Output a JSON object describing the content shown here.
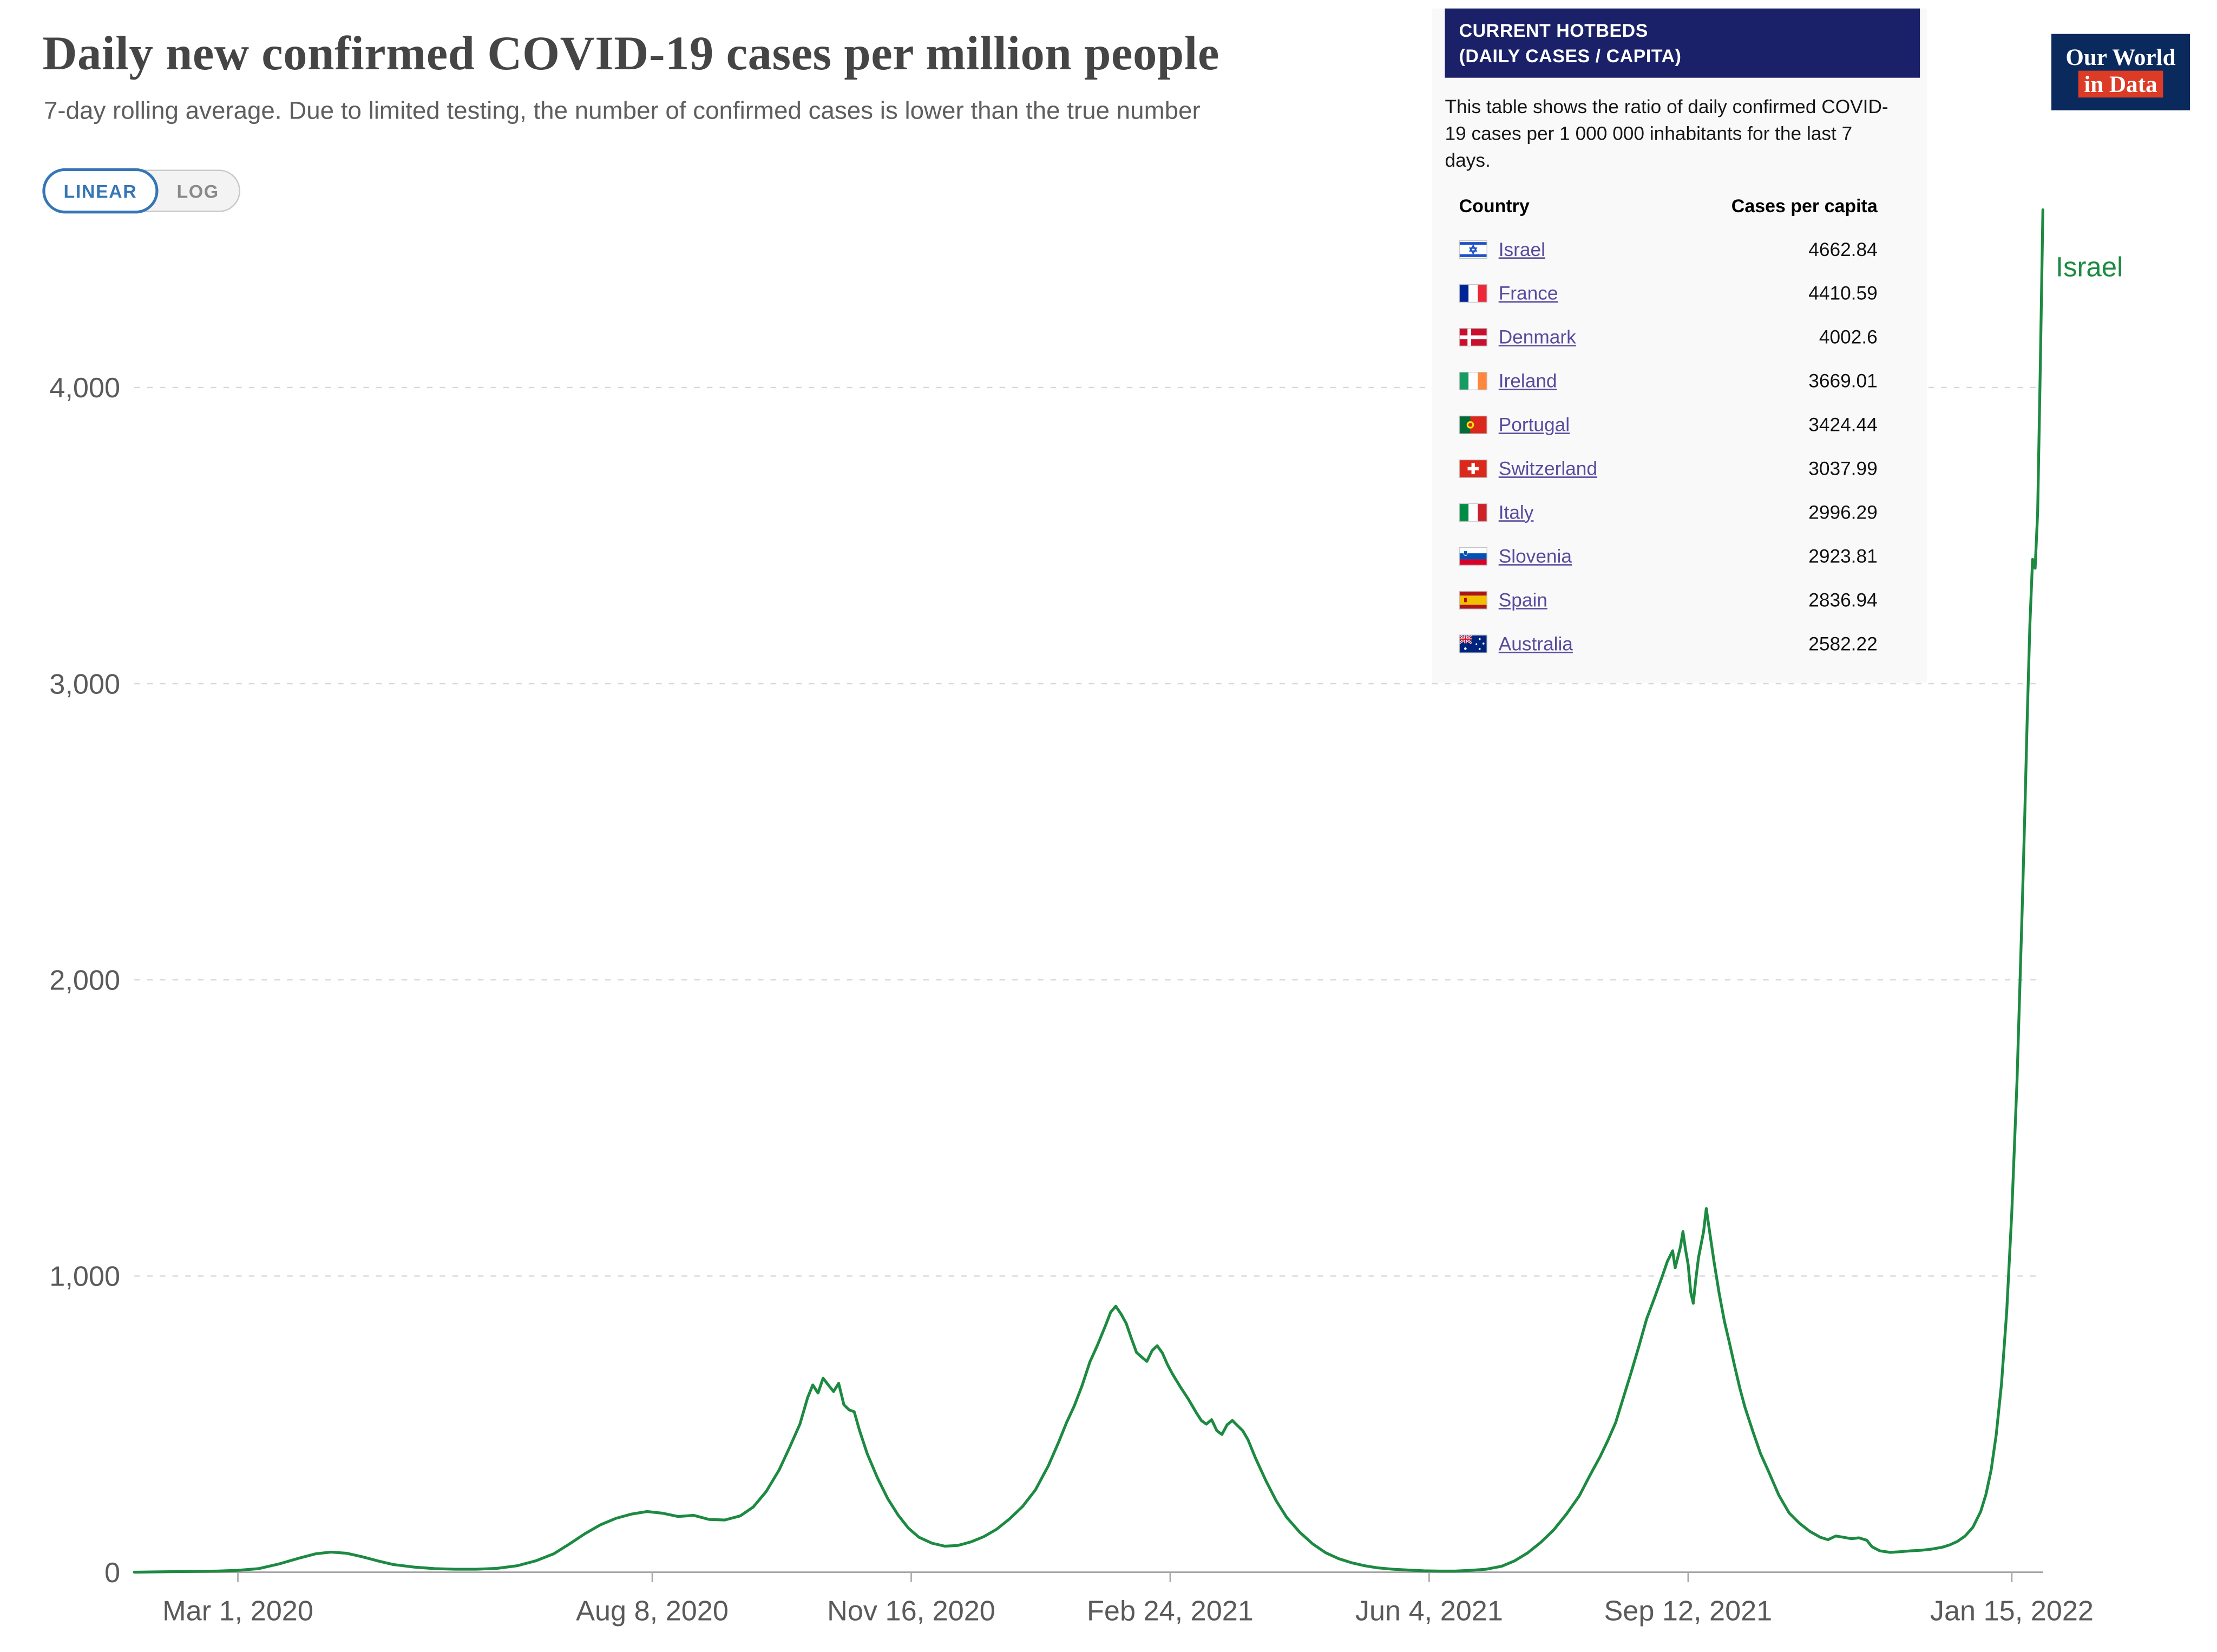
{
  "toggle": {
    "linear": "LINEAR",
    "log": "LOG"
  },
  "logo": {
    "line1": "Our World",
    "line2": "in Data"
  },
  "hotbeds": {
    "header_line1": "CURRENT HOTBEDS",
    "header_line2": "(DAILY CASES / CAPITA)",
    "description": "This table shows the ratio of daily confirmed COVID-19 cases per 1 000 000 inhabitants for the last 7 days.",
    "columns": [
      "Country",
      "Cases per capita"
    ],
    "rows": [
      {
        "country": "Israel",
        "flag": "israel-flag-icon",
        "value": "4662.84"
      },
      {
        "country": "France",
        "flag": "france-flag-icon",
        "value": "4410.59"
      },
      {
        "country": "Denmark",
        "flag": "denmark-flag-icon",
        "value": "4002.6"
      },
      {
        "country": "Ireland",
        "flag": "ireland-flag-icon",
        "value": "3669.01"
      },
      {
        "country": "Portugal",
        "flag": "portugal-flag-icon",
        "value": "3424.44"
      },
      {
        "country": "Switzerland",
        "flag": "switzerland-flag-icon",
        "value": "3037.99"
      },
      {
        "country": "Italy",
        "flag": "italy-flag-icon",
        "value": "2996.29"
      },
      {
        "country": "Slovenia",
        "flag": "slovenia-flag-icon",
        "value": "2923.81"
      },
      {
        "country": "Spain",
        "flag": "spain-flag-icon",
        "value": "2836.94"
      },
      {
        "country": "Australia",
        "flag": "australia-flag-icon",
        "value": "2582.22"
      }
    ]
  },
  "chart_data": {
    "type": "line",
    "title": "Daily new confirmed COVID-19 cases per million people",
    "subtitle": "7-day rolling average. Due to limited testing, the number of confirmed cases is lower than the true number",
    "x_unit": "days since Mar 1, 2020",
    "x_domain": [
      -40,
      697
    ],
    "x_tick_days": [
      0,
      160,
      260,
      360,
      460,
      560,
      685
    ],
    "x_tick_labels": [
      "Mar 1, 2020",
      "Aug 8, 2020",
      "Nov 16, 2020",
      "Feb 24, 2021",
      "Jun 4, 2021",
      "Sep 12, 2021",
      "Jan 15, 2022"
    ],
    "ylim": [
      0,
      4750
    ],
    "y_ticks": [
      0,
      1000,
      2000,
      3000,
      4000
    ],
    "y_tick_labels": [
      "0",
      "1,000",
      "2,000",
      "3,000",
      "4,000"
    ],
    "grid": "dashed-horizontal",
    "legend_position": "end-of-line-label",
    "series": [
      {
        "name": "Israel",
        "color": "#1d8a41",
        "latest_value": 4662.84,
        "points": [
          [
            -40,
            0
          ],
          [
            -32,
            1
          ],
          [
            -24,
            2
          ],
          [
            -16,
            3
          ],
          [
            -8,
            4
          ],
          [
            0,
            6
          ],
          [
            8,
            12
          ],
          [
            16,
            28
          ],
          [
            24,
            48
          ],
          [
            30,
            62
          ],
          [
            36,
            68
          ],
          [
            42,
            64
          ],
          [
            48,
            52
          ],
          [
            54,
            38
          ],
          [
            60,
            26
          ],
          [
            68,
            17
          ],
          [
            76,
            12
          ],
          [
            84,
            10
          ],
          [
            92,
            10
          ],
          [
            100,
            13
          ],
          [
            108,
            22
          ],
          [
            115,
            38
          ],
          [
            122,
            62
          ],
          [
            128,
            95
          ],
          [
            134,
            130
          ],
          [
            140,
            160
          ],
          [
            146,
            182
          ],
          [
            152,
            196
          ],
          [
            158,
            205
          ],
          [
            164,
            199
          ],
          [
            170,
            188
          ],
          [
            176,
            192
          ],
          [
            182,
            178
          ],
          [
            188,
            176
          ],
          [
            194,
            190
          ],
          [
            199,
            220
          ],
          [
            204,
            272
          ],
          [
            209,
            345
          ],
          [
            213,
            420
          ],
          [
            217,
            500
          ],
          [
            220,
            590
          ],
          [
            222,
            632
          ],
          [
            224,
            605
          ],
          [
            226,
            655
          ],
          [
            228,
            632
          ],
          [
            230,
            610
          ],
          [
            232,
            638
          ],
          [
            234,
            565
          ],
          [
            236,
            548
          ],
          [
            238,
            542
          ],
          [
            240,
            480
          ],
          [
            243,
            400
          ],
          [
            247,
            318
          ],
          [
            251,
            248
          ],
          [
            255,
            192
          ],
          [
            259,
            148
          ],
          [
            263,
            118
          ],
          [
            268,
            98
          ],
          [
            273,
            88
          ],
          [
            278,
            90
          ],
          [
            283,
            102
          ],
          [
            288,
            120
          ],
          [
            293,
            145
          ],
          [
            298,
            180
          ],
          [
            303,
            222
          ],
          [
            308,
            278
          ],
          [
            313,
            360
          ],
          [
            317,
            440
          ],
          [
            320,
            505
          ],
          [
            323,
            562
          ],
          [
            326,
            630
          ],
          [
            329,
            710
          ],
          [
            332,
            768
          ],
          [
            335,
            832
          ],
          [
            337,
            878
          ],
          [
            339,
            898
          ],
          [
            341,
            872
          ],
          [
            343,
            840
          ],
          [
            345,
            790
          ],
          [
            347,
            742
          ],
          [
            349,
            726
          ],
          [
            351,
            712
          ],
          [
            353,
            748
          ],
          [
            355,
            765
          ],
          [
            357,
            740
          ],
          [
            359,
            700
          ],
          [
            361,
            668
          ],
          [
            364,
            625
          ],
          [
            367,
            585
          ],
          [
            370,
            540
          ],
          [
            372,
            512
          ],
          [
            374,
            500
          ],
          [
            376,
            515
          ],
          [
            378,
            478
          ],
          [
            380,
            465
          ],
          [
            382,
            498
          ],
          [
            384,
            512
          ],
          [
            386,
            495
          ],
          [
            388,
            478
          ],
          [
            390,
            448
          ],
          [
            393,
            385
          ],
          [
            397,
            308
          ],
          [
            401,
            240
          ],
          [
            405,
            185
          ],
          [
            410,
            135
          ],
          [
            415,
            96
          ],
          [
            420,
            66
          ],
          [
            425,
            46
          ],
          [
            430,
            32
          ],
          [
            435,
            22
          ],
          [
            440,
            15
          ],
          [
            446,
            10
          ],
          [
            452,
            7
          ],
          [
            458,
            5
          ],
          [
            464,
            4
          ],
          [
            470,
            4
          ],
          [
            476,
            6
          ],
          [
            482,
            10
          ],
          [
            488,
            20
          ],
          [
            493,
            38
          ],
          [
            498,
            65
          ],
          [
            503,
            100
          ],
          [
            508,
            142
          ],
          [
            513,
            196
          ],
          [
            518,
            258
          ],
          [
            522,
            325
          ],
          [
            526,
            390
          ],
          [
            529,
            445
          ],
          [
            532,
            505
          ],
          [
            535,
            590
          ],
          [
            538,
            675
          ],
          [
            541,
            762
          ],
          [
            544,
            855
          ],
          [
            547,
            925
          ],
          [
            550,
            998
          ],
          [
            552,
            1050
          ],
          [
            554,
            1085
          ],
          [
            555,
            1028
          ],
          [
            557,
            1098
          ],
          [
            558,
            1150
          ],
          [
            559,
            1090
          ],
          [
            560,
            1038
          ],
          [
            561,
            945
          ],
          [
            562,
            908
          ],
          [
            563,
            988
          ],
          [
            564,
            1062
          ],
          [
            566,
            1150
          ],
          [
            567,
            1228
          ],
          [
            568,
            1168
          ],
          [
            570,
            1048
          ],
          [
            572,
            942
          ],
          [
            574,
            848
          ],
          [
            576,
            772
          ],
          [
            578,
            695
          ],
          [
            580,
            620
          ],
          [
            582,
            556
          ],
          [
            585,
            476
          ],
          [
            588,
            400
          ],
          [
            591,
            342
          ],
          [
            595,
            260
          ],
          [
            599,
            200
          ],
          [
            603,
            165
          ],
          [
            607,
            138
          ],
          [
            611,
            118
          ],
          [
            614,
            110
          ],
          [
            617,
            122
          ],
          [
            620,
            118
          ],
          [
            623,
            113
          ],
          [
            626,
            116
          ],
          [
            629,
            108
          ],
          [
            631,
            86
          ],
          [
            634,
            72
          ],
          [
            638,
            67
          ],
          [
            642,
            69
          ],
          [
            646,
            72
          ],
          [
            650,
            74
          ],
          [
            654,
            78
          ],
          [
            658,
            84
          ],
          [
            661,
            92
          ],
          [
            664,
            104
          ],
          [
            667,
            122
          ],
          [
            670,
            152
          ],
          [
            673,
            205
          ],
          [
            675,
            262
          ],
          [
            677,
            345
          ],
          [
            679,
            465
          ],
          [
            681,
            635
          ],
          [
            683,
            880
          ],
          [
            685,
            1215
          ],
          [
            687,
            1660
          ],
          [
            689,
            2230
          ],
          [
            690,
            2560
          ],
          [
            691,
            2900
          ],
          [
            692,
            3200
          ],
          [
            693,
            3420
          ],
          [
            694,
            3390
          ],
          [
            695,
            3580
          ],
          [
            696,
            4080
          ],
          [
            697,
            4600
          ]
        ]
      }
    ]
  },
  "colors": {
    "accent_blue": "#3676b5",
    "series_green": "#1d8a41",
    "panel_navy": "#1b2168",
    "logo_navy": "#0a2a5e",
    "logo_red": "#dc3b26",
    "link_purple": "#584c9e",
    "panel_bg": "#f9f9f9",
    "grid_gray": "#d8d8d8"
  }
}
